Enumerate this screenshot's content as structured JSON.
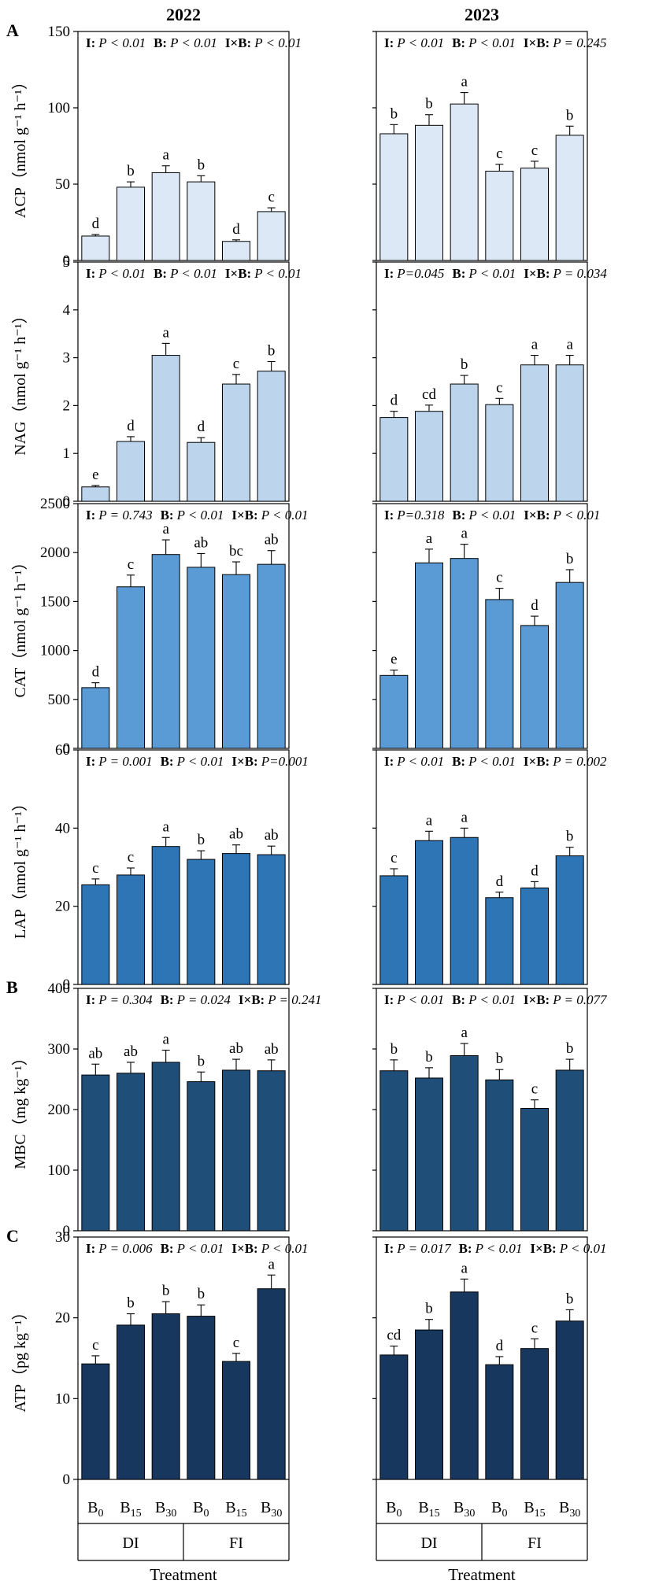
{
  "chart_data": {
    "type": "bar",
    "columns": [
      "2022",
      "2023"
    ],
    "categories": [
      "B0",
      "B15",
      "B30",
      "B0",
      "B15",
      "B30"
    ],
    "category_labels": [
      {
        "main": "B",
        "sub": "0"
      },
      {
        "main": "B",
        "sub": "15"
      },
      {
        "main": "B",
        "sub": "30"
      },
      {
        "main": "B",
        "sub": "0"
      },
      {
        "main": "B",
        "sub": "15"
      },
      {
        "main": "B",
        "sub": "30"
      }
    ],
    "groups": [
      "DI",
      "FI"
    ],
    "xlabel": "Treatment",
    "panel_letters": [
      "A",
      "B",
      "C"
    ],
    "rows": [
      {
        "name": "ACP",
        "ylabel": "ACP（nmol g⁻¹ h⁻¹）",
        "panel_letter": "A",
        "ylim": [
          0,
          150
        ],
        "yticks": [
          0,
          50,
          100,
          150
        ],
        "color": "#dde8f6",
        "panels": [
          {
            "year": "2022",
            "stats": [
              {
                "k": "I:",
                "v": "P < 0.01"
              },
              {
                "k": "B:",
                "v": "P < 0.01"
              },
              {
                "k": "I×B:",
                "v": "P < 0.01"
              }
            ],
            "values": [
              16,
              48,
              57.5,
              51.5,
              12.5,
              32
            ],
            "errors": [
              1,
              3.5,
              4.5,
              4,
              1,
              2.5
            ],
            "letters": [
              "d",
              "b",
              "a",
              "b",
              "d",
              "c"
            ]
          },
          {
            "year": "2023",
            "stats": [
              {
                "k": "I:",
                "v": "P < 0.01"
              },
              {
                "k": "B:",
                "v": "P < 0.01"
              },
              {
                "k": "I×B:",
                "v": "P = 0.245"
              }
            ],
            "values": [
              83,
              88.5,
              102.5,
              58.5,
              60.5,
              82
            ],
            "errors": [
              6,
              7,
              7.5,
              4.5,
              4.5,
              6
            ],
            "letters": [
              "b",
              "b",
              "a",
              "c",
              "c",
              "b"
            ]
          }
        ]
      },
      {
        "name": "NAG",
        "ylabel": "NAG（nmol g⁻¹ h⁻¹）",
        "panel_letter": "",
        "ylim": [
          0,
          5
        ],
        "yticks": [
          0,
          1,
          2,
          3,
          4,
          5
        ],
        "color": "#bcd4ec",
        "panels": [
          {
            "year": "2022",
            "stats": [
              {
                "k": "I:",
                "v": "P < 0.01"
              },
              {
                "k": "B:",
                "v": "P < 0.01"
              },
              {
                "k": "I×B:",
                "v": "P < 0.01"
              }
            ],
            "values": [
              0.3,
              1.25,
              3.05,
              1.23,
              2.45,
              2.72
            ],
            "errors": [
              0.03,
              0.1,
              0.25,
              0.1,
              0.2,
              0.2
            ],
            "letters": [
              "e",
              "d",
              "a",
              "d",
              "c",
              "b"
            ]
          },
          {
            "year": "2023",
            "stats": [
              {
                "k": "I:",
                "v": "P=0.045"
              },
              {
                "k": "B:",
                "v": "P < 0.01"
              },
              {
                "k": "I×B:",
                "v": "P = 0.034"
              }
            ],
            "values": [
              1.75,
              1.88,
              2.45,
              2.02,
              2.85,
              2.85
            ],
            "errors": [
              0.13,
              0.13,
              0.18,
              0.13,
              0.2,
              0.2
            ],
            "letters": [
              "d",
              "cd",
              "b",
              "c",
              "a",
              "a"
            ]
          }
        ]
      },
      {
        "name": "CAT",
        "ylabel": "CAT（nmol g⁻¹ h⁻¹）",
        "panel_letter": "",
        "ylim": [
          0,
          2500
        ],
        "yticks": [
          0,
          500,
          1000,
          1500,
          2000,
          2500
        ],
        "color": "#5b9bd5",
        "panels": [
          {
            "year": "2022",
            "stats": [
              {
                "k": "I:",
                "v": "P = 0.743"
              },
              {
                "k": "B:",
                "v": "P < 0.01"
              },
              {
                "k": "I×B:",
                "v": "P < 0.01"
              }
            ],
            "values": [
              620,
              1650,
              1980,
              1850,
              1775,
              1880
            ],
            "errors": [
              50,
              120,
              150,
              140,
              130,
              140
            ],
            "letters": [
              "d",
              "c",
              "a",
              "ab",
              "bc",
              "ab"
            ]
          },
          {
            "year": "2023",
            "stats": [
              {
                "k": "I:",
                "v": "P=0.318"
              },
              {
                "k": "B:",
                "v": "P < 0.01"
              },
              {
                "k": "I×B:",
                "v": "P < 0.01"
              }
            ],
            "values": [
              745,
              1895,
              1940,
              1520,
              1255,
              1695
            ],
            "errors": [
              55,
              140,
              145,
              115,
              95,
              130
            ],
            "letters": [
              "e",
              "a",
              "a",
              "c",
              "d",
              "b"
            ]
          }
        ]
      },
      {
        "name": "LAP",
        "ylabel": "LAP（nmol g⁻¹ h⁻¹）",
        "panel_letter": "",
        "ylim": [
          0,
          60
        ],
        "yticks": [
          0,
          20,
          40,
          60
        ],
        "color": "#2e75b6",
        "panels": [
          {
            "year": "2022",
            "stats": [
              {
                "k": "I:",
                "v": "P = 0.001"
              },
              {
                "k": "B:",
                "v": "P < 0.01"
              },
              {
                "k": "I×B:",
                "v": "P=0.001"
              }
            ],
            "values": [
              25.5,
              28,
              35.3,
              32,
              33.5,
              33.2
            ],
            "errors": [
              1.5,
              1.8,
              2.3,
              2.2,
              2.2,
              2.2
            ],
            "letters": [
              "c",
              "c",
              "a",
              "b",
              "ab",
              "ab"
            ]
          },
          {
            "year": "2023",
            "stats": [
              {
                "k": "I:",
                "v": "P < 0.01"
              },
              {
                "k": "B:",
                "v": "P < 0.01"
              },
              {
                "k": "I×B:",
                "v": "P = 0.002"
              }
            ],
            "values": [
              27.8,
              36.8,
              37.6,
              22.2,
              24.7,
              32.9
            ],
            "errors": [
              1.8,
              2.4,
              2.4,
              1.4,
              1.6,
              2.2
            ],
            "letters": [
              "c",
              "a",
              "a",
              "d",
              "d",
              "b"
            ]
          }
        ]
      },
      {
        "name": "MBC",
        "ylabel": "MBC（mg kg⁻¹）",
        "panel_letter": "B",
        "ylim": [
          0,
          400
        ],
        "yticks": [
          0,
          100,
          200,
          300,
          400
        ],
        "color": "#1f4e79",
        "panels": [
          {
            "year": "2022",
            "stats": [
              {
                "k": "I:",
                "v": "P = 0.304"
              },
              {
                "k": "B:",
                "v": "P = 0.024"
              },
              {
                "k": "I×B:",
                "v": "P = 0.241"
              }
            ],
            "values": [
              257,
              260,
              278,
              246,
              265,
              264
            ],
            "errors": [
              18,
              18,
              20,
              16,
              18,
              18
            ],
            "letters": [
              "ab",
              "ab",
              "a",
              "b",
              "ab",
              "ab"
            ]
          },
          {
            "year": "2023",
            "stats": [
              {
                "k": "I:",
                "v": "P < 0.01"
              },
              {
                "k": "B:",
                "v": "P < 0.01"
              },
              {
                "k": "I×B:",
                "v": "P = 0.077"
              }
            ],
            "values": [
              264,
              252,
              289,
              249,
              202,
              265
            ],
            "errors": [
              18,
              17,
              20,
              17,
              14,
              18
            ],
            "letters": [
              "b",
              "b",
              "a",
              "b",
              "c",
              "b"
            ]
          }
        ]
      },
      {
        "name": "ATP",
        "ylabel": "ATP（pg kg⁻¹）",
        "panel_letter": "C",
        "ylim": [
          0,
          30
        ],
        "yticks": [
          0,
          10,
          20,
          30
        ],
        "color": "#17375e",
        "panels": [
          {
            "year": "2022",
            "stats": [
              {
                "k": "I:",
                "v": "P = 0.006"
              },
              {
                "k": "B:",
                "v": "P < 0.01"
              },
              {
                "k": "I×B:",
                "v": "P < 0.01"
              }
            ],
            "values": [
              14.3,
              19.1,
              20.5,
              20.2,
              14.6,
              23.6
            ],
            "errors": [
              1.0,
              1.4,
              1.5,
              1.4,
              1.0,
              1.7
            ],
            "letters": [
              "c",
              "b",
              "b",
              "b",
              "c",
              "a"
            ]
          },
          {
            "year": "2023",
            "stats": [
              {
                "k": "I:",
                "v": "P = 0.017"
              },
              {
                "k": "B:",
                "v": "P < 0.01"
              },
              {
                "k": "I×B:",
                "v": "P < 0.01"
              }
            ],
            "values": [
              15.4,
              18.5,
              23.2,
              14.2,
              16.2,
              19.6
            ],
            "errors": [
              1.1,
              1.3,
              1.6,
              1.0,
              1.2,
              1.4
            ],
            "letters": [
              "cd",
              "b",
              "a",
              "d",
              "c",
              "b"
            ]
          }
        ]
      }
    ]
  }
}
